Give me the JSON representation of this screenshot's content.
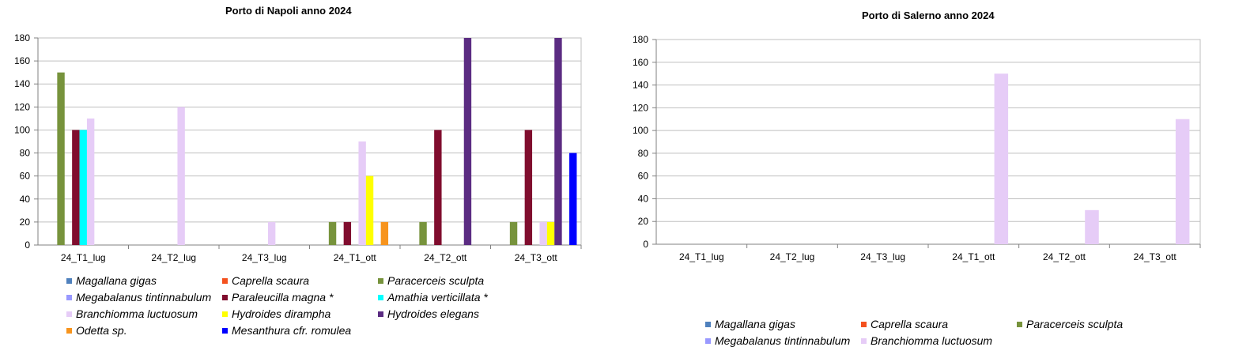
{
  "chart_data": [
    {
      "type": "bar",
      "title": "Porto di Napoli anno 2024",
      "xlabel": "",
      "ylabel": "",
      "ylim": [
        0,
        180
      ],
      "yticks": [
        0,
        20,
        40,
        60,
        80,
        100,
        120,
        140,
        160,
        180
      ],
      "grid": true,
      "legend_position": "bottom",
      "categories": [
        "24_T1_lug",
        "24_T2_lug",
        "24_T3_lug",
        "24_T1_ott",
        "24_T2_ott",
        "24_T3_ott"
      ],
      "series": [
        {
          "name": "Magallana gigas",
          "color": "#4f81bd",
          "values": [
            0,
            0,
            0,
            0,
            0,
            0
          ]
        },
        {
          "name": "Caprella scaura",
          "color": "#f4511e",
          "values": [
            0,
            0,
            0,
            0,
            0,
            0
          ]
        },
        {
          "name": "Paracerceis sculpta",
          "color": "#77933c",
          "values": [
            150,
            0,
            0,
            20,
            20,
            20
          ]
        },
        {
          "name": "Megabalanus tintinnabulum",
          "color": "#9999ff",
          "values": [
            0,
            0,
            0,
            0,
            0,
            0
          ]
        },
        {
          "name": "Paraleucilla magna *",
          "color": "#800d2e",
          "values": [
            100,
            0,
            0,
            20,
            100,
            100
          ]
        },
        {
          "name": "Amathia verticillata *",
          "color": "#00ffff",
          "values": [
            100,
            0,
            0,
            0,
            0,
            0
          ]
        },
        {
          "name": "Branchiomma luctuosum",
          "color": "#e6ccf7",
          "values": [
            110,
            120,
            20,
            90,
            0,
            20
          ]
        },
        {
          "name": "Hydroides dirampha",
          "color": "#ffff00",
          "values": [
            0,
            0,
            0,
            60,
            0,
            20
          ]
        },
        {
          "name": "Hydroides elegans",
          "color": "#5b2c82",
          "values": [
            0,
            0,
            0,
            0,
            180,
            180
          ]
        },
        {
          "name": "Odetta sp.",
          "color": "#f7941d",
          "values": [
            0,
            0,
            0,
            20,
            0,
            0
          ]
        },
        {
          "name": "Mesanthura cfr. romulea",
          "color": "#0000ff",
          "values": [
            0,
            0,
            0,
            0,
            0,
            80
          ]
        }
      ]
    },
    {
      "type": "bar",
      "title": "Porto di Salerno anno 2024",
      "xlabel": "",
      "ylabel": "",
      "ylim": [
        0,
        180
      ],
      "yticks": [
        0,
        20,
        40,
        60,
        80,
        100,
        120,
        140,
        160,
        180
      ],
      "grid": true,
      "legend_position": "bottom",
      "categories": [
        "24_T1_lug",
        "24_T2_lug",
        "24_T3_lug",
        "24_T1_ott",
        "24_T2_ott",
        "24_T3_ott"
      ],
      "series": [
        {
          "name": "Magallana gigas",
          "color": "#4f81bd",
          "values": [
            0,
            0,
            0,
            0,
            0,
            0
          ]
        },
        {
          "name": "Caprella scaura",
          "color": "#f4511e",
          "values": [
            0,
            0,
            0,
            0,
            0,
            0
          ]
        },
        {
          "name": "Paracerceis sculpta",
          "color": "#77933c",
          "values": [
            0,
            0,
            0,
            0,
            0,
            0
          ]
        },
        {
          "name": "Megabalanus tintinnabulum",
          "color": "#9999ff",
          "values": [
            0,
            0,
            0,
            0,
            0,
            0
          ]
        },
        {
          "name": "Branchiomma luctuosum",
          "color": "#e6ccf7",
          "values": [
            0,
            0,
            0,
            150,
            30,
            110
          ]
        }
      ]
    }
  ]
}
